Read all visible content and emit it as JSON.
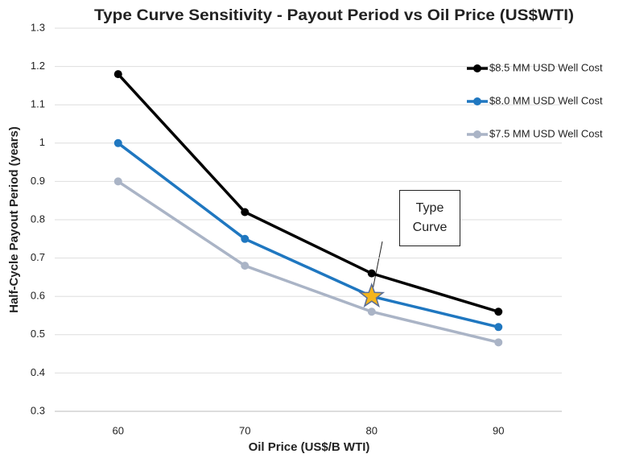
{
  "chart_data": {
    "type": "line",
    "title": "Type Curve Sensitivity - Payout Period vs Oil Price (US$WTI)",
    "x_label": "Oil Price (US$/B WTI)",
    "y_label": "Half-Cycle Payout Period (years)",
    "categories": [
      "60",
      "70",
      "80",
      "90"
    ],
    "series": [
      {
        "name": "$8.5 MM USD Well Cost",
        "color": "#000000",
        "values": [
          1.18,
          0.82,
          0.66,
          0.56
        ]
      },
      {
        "name": "$8.0 MM USD Well Cost",
        "color": "#1f77c0",
        "values": [
          1.0,
          0.75,
          0.6,
          0.52
        ]
      },
      {
        "name": "$7.5 MM USD Well Cost",
        "color": "#aab4c6",
        "values": [
          0.9,
          0.68,
          0.56,
          0.48
        ]
      }
    ],
    "annotation": "Type Curve",
    "ylim": [
      0.3,
      1.3
    ],
    "yticks": [
      0.3,
      0.4,
      0.5,
      0.6,
      0.7,
      0.8,
      0.9,
      1,
      1.1,
      1.2,
      1.3
    ],
    "grid": true,
    "legend": "top-right"
  }
}
